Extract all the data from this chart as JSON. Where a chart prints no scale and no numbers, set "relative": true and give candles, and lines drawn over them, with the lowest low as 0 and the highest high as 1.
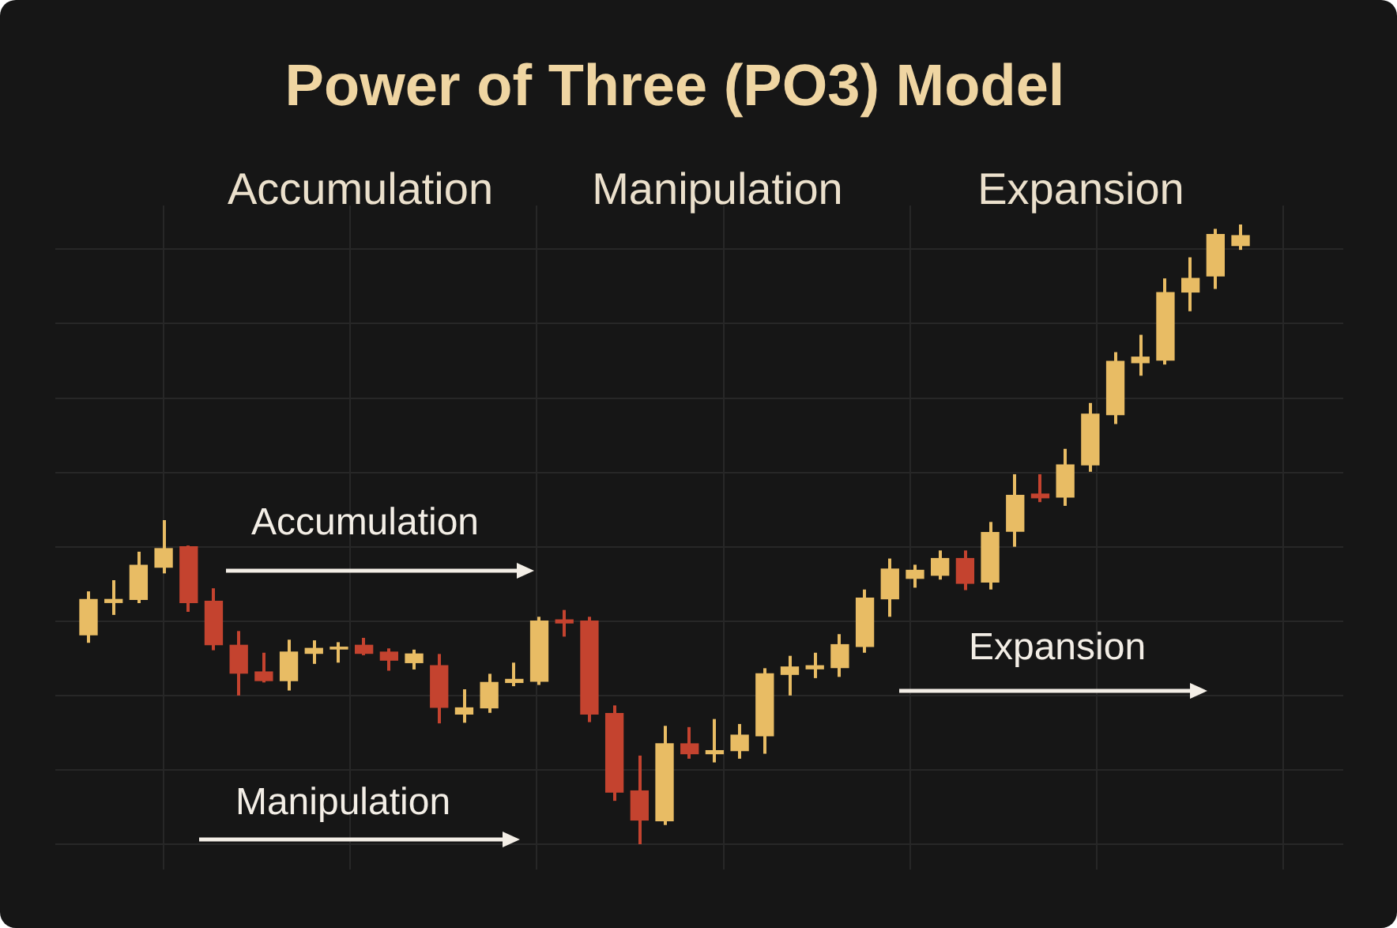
{
  "chart_data": {
    "type": "candlestick",
    "title": "Power of Three (PO3) Model",
    "annotations": [
      "Accumulation",
      "Manipulation",
      "Expansion",
      "Accumulation",
      "Expansion",
      "Manipulation"
    ],
    "categories": [
      null,
      null,
      null,
      null,
      null,
      null,
      null,
      null,
      null,
      null,
      null,
      null,
      null,
      null,
      null,
      null,
      null,
      null,
      null,
      null,
      null,
      null,
      null,
      null,
      null,
      null,
      null,
      null,
      null,
      null,
      null,
      null,
      null,
      null,
      null,
      null,
      null,
      null,
      null,
      null,
      null,
      null,
      null,
      null,
      null,
      null,
      null
    ],
    "ohlc": [
      [
        0.338,
        0.408,
        0.325,
        0.395
      ],
      [
        0.39,
        0.426,
        0.37,
        0.395
      ],
      [
        0.395,
        0.472,
        0.389,
        0.45
      ],
      [
        0.447,
        0.523,
        0.437,
        0.477
      ],
      [
        0.48,
        0.482,
        0.375,
        0.39
      ],
      [
        0.392,
        0.413,
        0.313,
        0.322
      ],
      [
        0.321,
        0.344,
        0.24,
        0.276
      ],
      [
        0.278,
        0.309,
        0.261,
        0.264
      ],
      [
        0.264,
        0.33,
        0.248,
        0.31
      ],
      [
        0.308,
        0.329,
        0.291,
        0.316
      ],
      [
        0.315,
        0.326,
        0.293,
        0.318
      ],
      [
        0.321,
        0.333,
        0.305,
        0.308
      ],
      [
        0.31,
        0.316,
        0.28,
        0.297
      ],
      [
        0.293,
        0.314,
        0.282,
        0.307
      ],
      [
        0.288,
        0.307,
        0.195,
        0.221
      ],
      [
        0.21,
        0.25,
        0.196,
        0.22
      ],
      [
        0.22,
        0.275,
        0.212,
        0.261
      ],
      [
        0.261,
        0.293,
        0.255,
        0.266
      ],
      [
        0.263,
        0.367,
        0.257,
        0.36
      ],
      [
        0.362,
        0.378,
        0.335,
        0.357
      ],
      [
        0.36,
        0.367,
        0.197,
        0.21
      ],
      [
        0.211,
        0.224,
        0.07,
        0.084
      ],
      [
        0.086,
        0.143,
        0,
        0.039
      ],
      [
        0.038,
        0.191,
        0.031,
        0.162
      ],
      [
        0.162,
        0.189,
        0.138,
        0.146
      ],
      [
        0.146,
        0.202,
        0.132,
        0.151
      ],
      [
        0.151,
        0.194,
        0.138,
        0.176
      ],
      [
        0.175,
        0.284,
        0.146,
        0.275
      ],
      [
        0.274,
        0.304,
        0.24,
        0.286
      ],
      [
        0.283,
        0.309,
        0.268,
        0.288
      ],
      [
        0.285,
        0.339,
        0.27,
        0.322
      ],
      [
        0.319,
        0.411,
        0.309,
        0.397
      ],
      [
        0.396,
        0.461,
        0.367,
        0.444
      ],
      [
        0.429,
        0.451,
        0.414,
        0.442
      ],
      [
        0.434,
        0.474,
        0.427,
        0.461
      ],
      [
        0.461,
        0.474,
        0.41,
        0.421
      ],
      [
        0.423,
        0.52,
        0.411,
        0.503
      ],
      [
        0.505,
        0.597,
        0.48,
        0.563
      ],
      [
        0.565,
        0.597,
        0.552,
        0.559
      ],
      [
        0.56,
        0.638,
        0.546,
        0.612
      ],
      [
        0.612,
        0.712,
        0.601,
        0.694
      ],
      [
        0.693,
        0.794,
        0.678,
        0.779
      ],
      [
        0.777,
        0.822,
        0.756,
        0.786
      ],
      [
        0.781,
        0.913,
        0.774,
        0.89
      ],
      [
        0.891,
        0.947,
        0.86,
        0.913
      ],
      [
        0.917,
        0.993,
        0.896,
        0.984
      ],
      [
        0.966,
        1,
        0.959,
        0.982
      ]
    ],
    "colors": [
      "#e8bc64",
      "#e8bc64",
      "#e8bc64",
      "#e8bc64",
      "#c4432f",
      "#c4432f",
      "#c4432f",
      "#c4432f",
      "#e8bc64",
      "#e8bc64",
      "#e8bc64",
      "#c4432f",
      "#c4432f",
      "#e8bc64",
      "#c4432f",
      "#e8bc64",
      "#e8bc64",
      "#e8bc64",
      "#e8bc64",
      "#c4432f",
      "#c4432f",
      "#c4432f",
      "#c4432f",
      "#e8bc64",
      "#c4432f",
      "#e8bc64",
      "#e8bc64",
      "#e8bc64",
      "#e8bc64",
      "#e8bc64",
      "#e8bc64",
      "#e8bc64",
      "#e8bc64",
      "#e8bc64",
      "#e8bc64",
      "#c4432f",
      "#e8bc64",
      "#e8bc64",
      "#c4432f",
      "#e8bc64",
      "#e8bc64",
      "#e8bc64",
      "#e8bc64",
      "#e8bc64",
      "#e8bc64",
      "#e8bc64",
      "#e8bc64"
    ],
    "relative": true,
    "grid": true
  }
}
